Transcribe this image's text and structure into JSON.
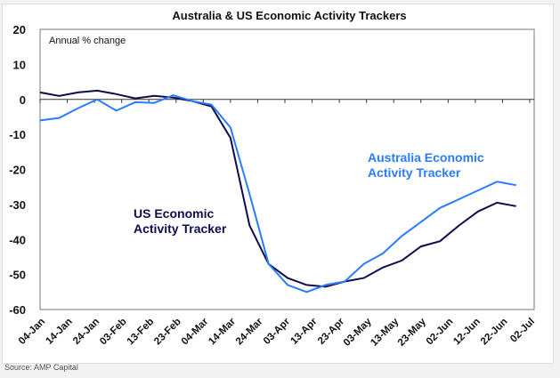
{
  "chart_data": {
    "type": "line",
    "title": "Australia & US Economic Activity Trackers",
    "annotation": "Annual % change",
    "ylabel": "Annual % change",
    "xlabel": "",
    "ylim": [
      -60,
      20
    ],
    "yticks": [
      "20",
      "10",
      "0",
      "-10",
      "-20",
      "-30",
      "-40",
      "-50",
      "-60"
    ],
    "xtick_labels": [
      "04-Jan",
      "14-Jan",
      "24-Jan",
      "03-Feb",
      "13-Feb",
      "23-Feb",
      "04-Mar",
      "14-Mar",
      "24-Mar",
      "03-Apr",
      "13-Apr",
      "23-Apr",
      "03-May",
      "13-May",
      "23-May",
      "02-Jun",
      "12-Jun",
      "22-Jun",
      "02-Jul"
    ],
    "x_days_from_04Jan": [
      0,
      7,
      14,
      21,
      28,
      35,
      42,
      49,
      56,
      63,
      70,
      77,
      84,
      91,
      98,
      105,
      112,
      119,
      126,
      133,
      140,
      147,
      154,
      161,
      168,
      175
    ],
    "series": [
      {
        "name": "US Economic Activity Tracker",
        "label_lines": [
          "US Economic",
          "Activity Tracker"
        ],
        "color": "#0d0d4d",
        "values": [
          2,
          1,
          2,
          2.5,
          1.5,
          0.3,
          1,
          0.5,
          -0.5,
          -2,
          -11,
          -36,
          -47,
          -51,
          -53,
          -53.5,
          -52,
          -51,
          -48,
          -46,
          -42,
          -40.5,
          -36,
          -32,
          -29.5,
          -30.5
        ]
      },
      {
        "name": "Australia Economic Activity Tracker",
        "label_lines": [
          "Australia Economic",
          "Activity Tracker"
        ],
        "color": "#2b7bff",
        "values": [
          -6,
          -5.3,
          -2.5,
          0,
          -3.2,
          -0.8,
          -1,
          1.2,
          -0.5,
          -1.5,
          -8,
          -27,
          -47,
          -53,
          -55,
          -53,
          -52,
          -47,
          -44,
          -39,
          -35,
          -31,
          -28.5,
          -26,
          -23.5,
          -24.5
        ]
      }
    ],
    "grid": false,
    "legend": "inline labels"
  },
  "source": "Source: AMP Capital"
}
